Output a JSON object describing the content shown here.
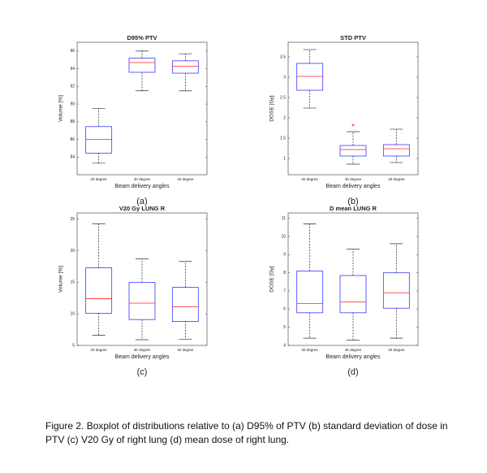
{
  "chart_data": [
    {
      "type": "box",
      "title": "D95% PTV",
      "xlabel": "Beam delivery angles",
      "ylabel": "Volume [%]",
      "panel_label": "(a)",
      "categories": [
        "20 degree",
        "30 degree",
        "40 degree"
      ],
      "boxes": [
        {
          "whisker_low": 83.3,
          "q1": 84.45,
          "median": 86,
          "q3": 87.45,
          "whisker_high": 89.5
        },
        {
          "whisker_low": 91.5,
          "q1": 93.6,
          "median": 94.7,
          "q3": 95.2,
          "whisker_high": 96
        },
        {
          "whisker_low": 91.5,
          "q1": 93.5,
          "median": 94.3,
          "q3": 94.9,
          "whisker_high": 95.7
        }
      ],
      "ylim": [
        82,
        97
      ],
      "yticks": [
        84,
        86,
        88,
        90,
        92,
        94,
        96
      ]
    },
    {
      "type": "box",
      "title": "STD PTV",
      "xlabel": "Beam delivery angles",
      "ylabel": "DOSE [Gy]",
      "panel_label": "(b)",
      "categories": [
        "20 degree",
        "30 degree",
        "40 degree"
      ],
      "boxes": [
        {
          "whisker_low": 2.24,
          "q1": 2.68,
          "median": 3.02,
          "q3": 3.34,
          "whisker_high": 3.68
        },
        {
          "whisker_low": 0.86,
          "q1": 1.06,
          "median": 1.22,
          "q3": 1.32,
          "whisker_high": 1.66,
          "outliers": [
            1.82
          ]
        },
        {
          "whisker_low": 0.9,
          "q1": 1.06,
          "median": 1.24,
          "q3": 1.34,
          "whisker_high": 1.72
        }
      ],
      "ylim": [
        0.6,
        3.86
      ],
      "yticks": [
        1,
        1.5,
        2,
        2.5,
        3,
        3.5
      ]
    },
    {
      "type": "box",
      "title": "V20 Gy LUNG R",
      "xlabel": "Beam delivery angles",
      "ylabel": "Volume [%]",
      "panel_label": "(c)",
      "categories": [
        "20 degree",
        "30 degree",
        "40 degree"
      ],
      "boxes": [
        {
          "whisker_low": 6.6,
          "q1": 10.1,
          "median": 12.4,
          "q3": 17.3,
          "whisker_high": 24.3
        },
        {
          "whisker_low": 5.9,
          "q1": 9.1,
          "median": 11.7,
          "q3": 15,
          "whisker_high": 18.7
        },
        {
          "whisker_low": 6,
          "q1": 8.8,
          "median": 11.1,
          "q3": 14.2,
          "whisker_high": 18.3
        }
      ],
      "ylim": [
        5,
        26
      ],
      "yticks": [
        5,
        10,
        15,
        20,
        25
      ]
    },
    {
      "type": "box",
      "title": "D mean LUNG R",
      "xlabel": "Beam delivery angles",
      "ylabel": "DOSE [Gy]",
      "panel_label": "(d)",
      "categories": [
        "20 degree",
        "30 degree",
        "40 degree"
      ],
      "boxes": [
        {
          "whisker_low": 4.4,
          "q1": 5.8,
          "median": 6.3,
          "q3": 8.1,
          "whisker_high": 10.7
        },
        {
          "whisker_low": 4.3,
          "q1": 5.8,
          "median": 6.4,
          "q3": 7.85,
          "whisker_high": 9.3
        },
        {
          "whisker_low": 4.4,
          "q1": 6.05,
          "median": 6.9,
          "q3": 8,
          "whisker_high": 9.6
        }
      ],
      "ylim": [
        4,
        11.3
      ],
      "yticks": [
        4,
        5,
        6,
        7,
        8,
        9,
        10,
        11
      ]
    }
  ],
  "caption": "Figure 2. Boxplot of distributions relative to (a) D95% of PTV (b) standard deviation of dose in PTV (c) V20 Gy of right lung (d) mean dose of right lung."
}
